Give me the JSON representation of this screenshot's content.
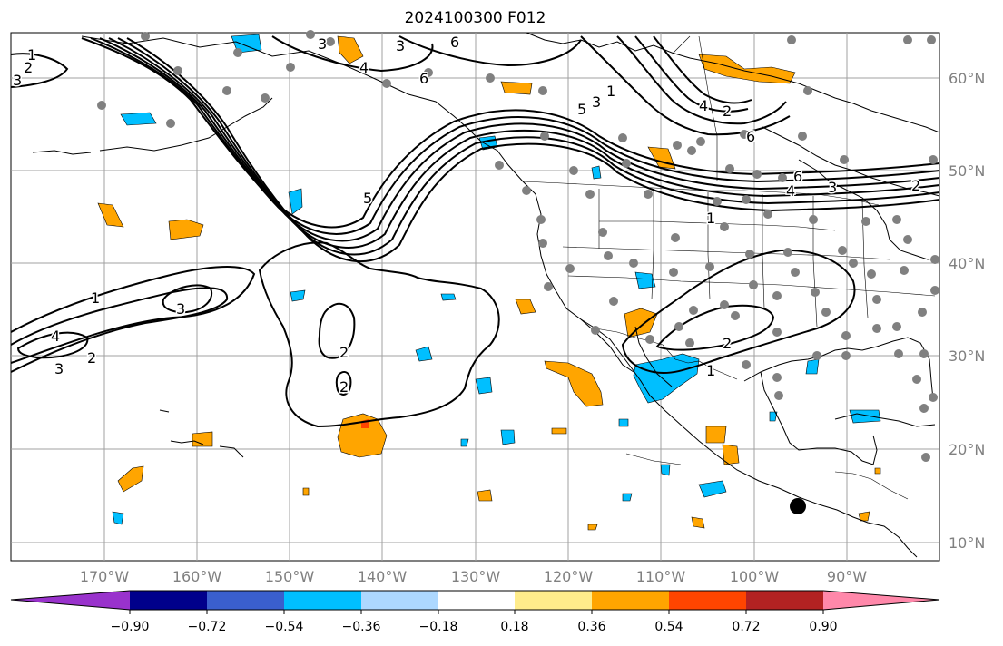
{
  "title": "2024100300 F012",
  "lat_labels": [
    "60°N",
    "50°N",
    "40°N",
    "30°N",
    "20°N",
    "10°N"
  ],
  "lon_labels": [
    "170°W",
    "160°W",
    "150°W",
    "140°W",
    "130°W",
    "120°W",
    "110°W",
    "100°W",
    "90°W"
  ],
  "colorbar": {
    "ticks": [
      "−0.90",
      "−0.72",
      "−0.54",
      "−0.36",
      "−0.18",
      "0.18",
      "0.36",
      "0.54",
      "0.72",
      "0.90"
    ],
    "colors": [
      "#9932cc",
      "#00008b",
      "#3a5fcd",
      "#00bfff",
      "#add8ff",
      "#ffffff",
      "#ffec8b",
      "#ffa500",
      "#ff4500",
      "#b22222",
      "#ff88aa"
    ]
  },
  "contour_labels": [
    "1",
    "2",
    "3",
    "4",
    "5",
    "6"
  ],
  "colors": {
    "map_fill": "#ffffff",
    "grid": "#a0a0a0",
    "coast": "#000000",
    "station": "#808080",
    "neg_fill": "#00bfff",
    "pos_fill": "#ffa500",
    "axis_text": "#808080"
  }
}
